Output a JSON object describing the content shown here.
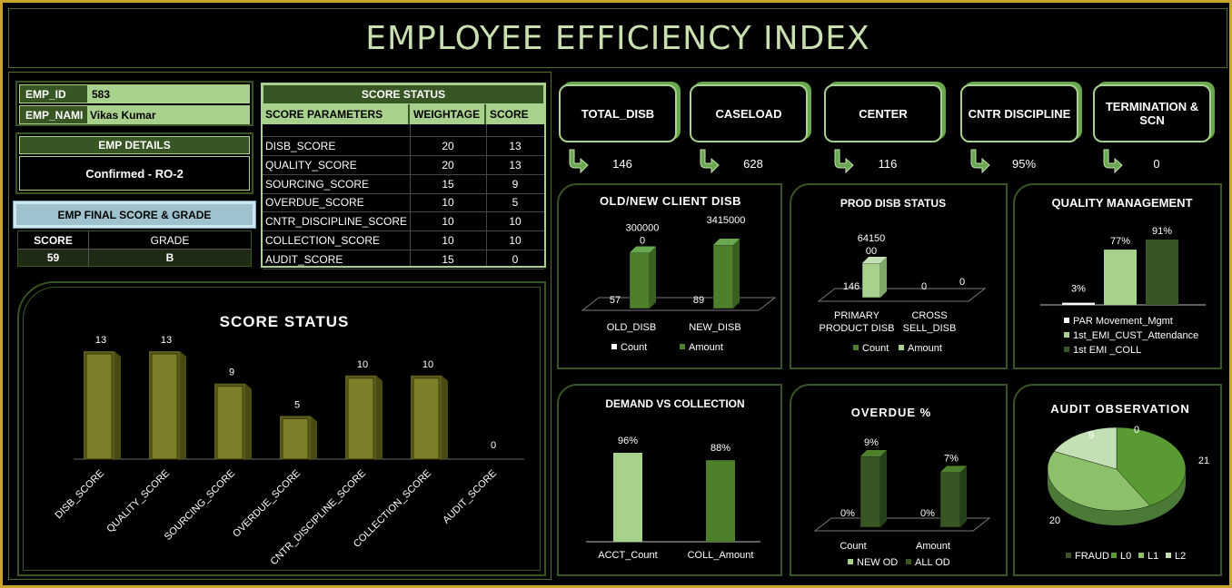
{
  "title": "EMPLOYEE EFFICIENCY INDEX",
  "emp": {
    "id_label": "EMP_ID",
    "id_value": "583",
    "name_label": "EMP_NAMI",
    "name_value": "Vikas Kumar",
    "details_label": "EMP DETAILS",
    "details_value": "Confirmed - RO-2",
    "final_label": "EMP FINAL SCORE & GRADE",
    "score_label": "SCORE",
    "grade_label": "GRADE",
    "score_value": "59",
    "grade_value": "B"
  },
  "score_table": {
    "title": "SCORE STATUS",
    "headers": [
      "SCORE PARAMETERS",
      "WEIGHTAGE",
      "SCORE"
    ],
    "rows": [
      {
        "param": "DISB_SCORE",
        "weight": "20",
        "score": "13"
      },
      {
        "param": "QUALITY_SCORE",
        "weight": "20",
        "score": "13"
      },
      {
        "param": "SOURCING_SCORE",
        "weight": "15",
        "score": "9"
      },
      {
        "param": "OVERDUE_SCORE",
        "weight": "10",
        "score": "5"
      },
      {
        "param": "CNTR_DISCIPLINE_SCORE",
        "weight": "10",
        "score": "10"
      },
      {
        "param": "COLLECTION_SCORE",
        "weight": "10",
        "score": "10"
      },
      {
        "param": "AUDIT_SCORE",
        "weight": "15",
        "score": "0"
      }
    ]
  },
  "kpis": [
    {
      "label": "TOTAL_DISB",
      "value": "146"
    },
    {
      "label": "CASELOAD",
      "value": "628"
    },
    {
      "label": "CENTER",
      "value": "116"
    },
    {
      "label": "CNTR DISCIPLINE",
      "value": "95%"
    },
    {
      "label": "TERMINATION & SCN",
      "value": "0"
    }
  ],
  "colors": {
    "accent": "#a9d18e",
    "dark_green": "#375623",
    "olive": "#7f7f2a",
    "gold_border": "#c9a52c"
  },
  "chart_data": [
    {
      "type": "bar",
      "title": "SCORE STATUS",
      "categories": [
        "DISB_SCORE",
        "QUALITY_SCORE",
        "SOURCING_SCORE",
        "OVERDUE_SCORE",
        "CNTR_DISCIPLINE_SCORE",
        "COLLECTION_SCORE",
        "AUDIT_SCORE"
      ],
      "values": [
        13,
        13,
        9,
        5,
        10,
        10,
        0
      ],
      "ylim": [
        0,
        14
      ]
    },
    {
      "type": "bar",
      "title": "OLD/NEW  CLIENT DISB",
      "categories": [
        "OLD_DISB",
        "NEW_DISB"
      ],
      "series": [
        {
          "name": "Count",
          "values": [
            57,
            89
          ]
        },
        {
          "name": "Amount",
          "values": [
            3000000,
            3415000
          ]
        }
      ],
      "data_labels": [
        [
          "57",
          "89"
        ],
        [
          "300000\n0",
          "3415000"
        ]
      ],
      "legend": "bottom"
    },
    {
      "type": "bar",
      "title": "PROD DISB STATUS",
      "categories": [
        "PRIMARY\nPRODUCT DISB",
        "CROSS\nSELL_DISB"
      ],
      "series": [
        {
          "name": "Count",
          "values": [
            146,
            0
          ]
        },
        {
          "name": "Amount",
          "values": [
            6415000,
            0
          ]
        }
      ],
      "data_labels": [
        [
          "146",
          "0"
        ],
        [
          "64150\n00",
          "0"
        ]
      ],
      "legend": "bottom"
    },
    {
      "type": "bar",
      "title": "QUALITY MANAGEMENT",
      "categories": [
        "PAR Movement_Mgmt",
        "1st_EMI_CUST_Attendance",
        "1st EMI _COLL"
      ],
      "values": [
        3,
        77,
        91
      ],
      "unit": "%",
      "legend": "bottom"
    },
    {
      "type": "bar",
      "title": "DEMAND VS COLLECTION",
      "categories": [
        "ACCT_Count",
        "COLL_Amount"
      ],
      "values": [
        96,
        88
      ],
      "unit": "%"
    },
    {
      "type": "bar",
      "title": "OVERDUE  %",
      "categories": [
        "Count",
        "Amount"
      ],
      "series": [
        {
          "name": "NEW OD",
          "values": [
            0,
            0
          ]
        },
        {
          "name": "ALL OD",
          "values": [
            9,
            7
          ]
        }
      ],
      "unit": "%",
      "legend": "bottom"
    },
    {
      "type": "pie",
      "title": "AUDIT OBSERVATION",
      "categories": [
        "FRAUD",
        "L0",
        "L1",
        "L2"
      ],
      "values": [
        0,
        21,
        20,
        9
      ],
      "legend": "bottom"
    }
  ]
}
